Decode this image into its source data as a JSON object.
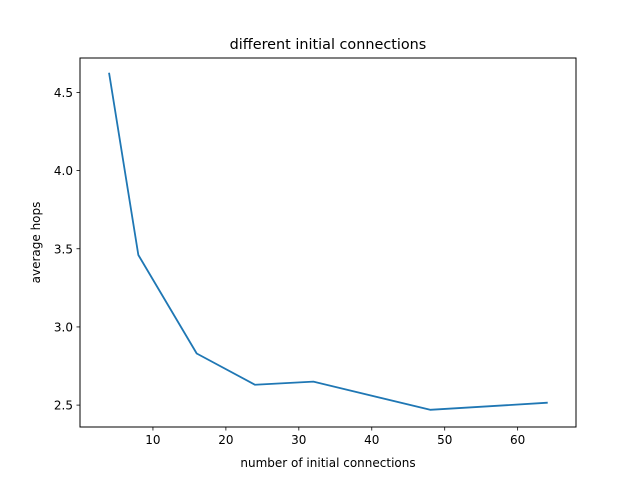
{
  "chart_data": {
    "type": "line",
    "title": "different initial connections",
    "xlabel": "number of initial connections",
    "ylabel": "average hops",
    "xlim": [
      0.0,
      68.0
    ],
    "ylim": [
      2.36,
      4.72
    ],
    "xticks": [
      10,
      20,
      30,
      40,
      50,
      60
    ],
    "yticks": [
      2.5,
      3.0,
      3.5,
      4.0,
      4.5
    ],
    "grid": false,
    "series": [
      {
        "x": [
          4,
          8,
          16,
          24,
          32,
          48,
          64
        ],
        "y": [
          4.62,
          3.46,
          2.83,
          2.63,
          2.65,
          2.47,
          2.515
        ],
        "color": "#1f77b4"
      }
    ]
  }
}
